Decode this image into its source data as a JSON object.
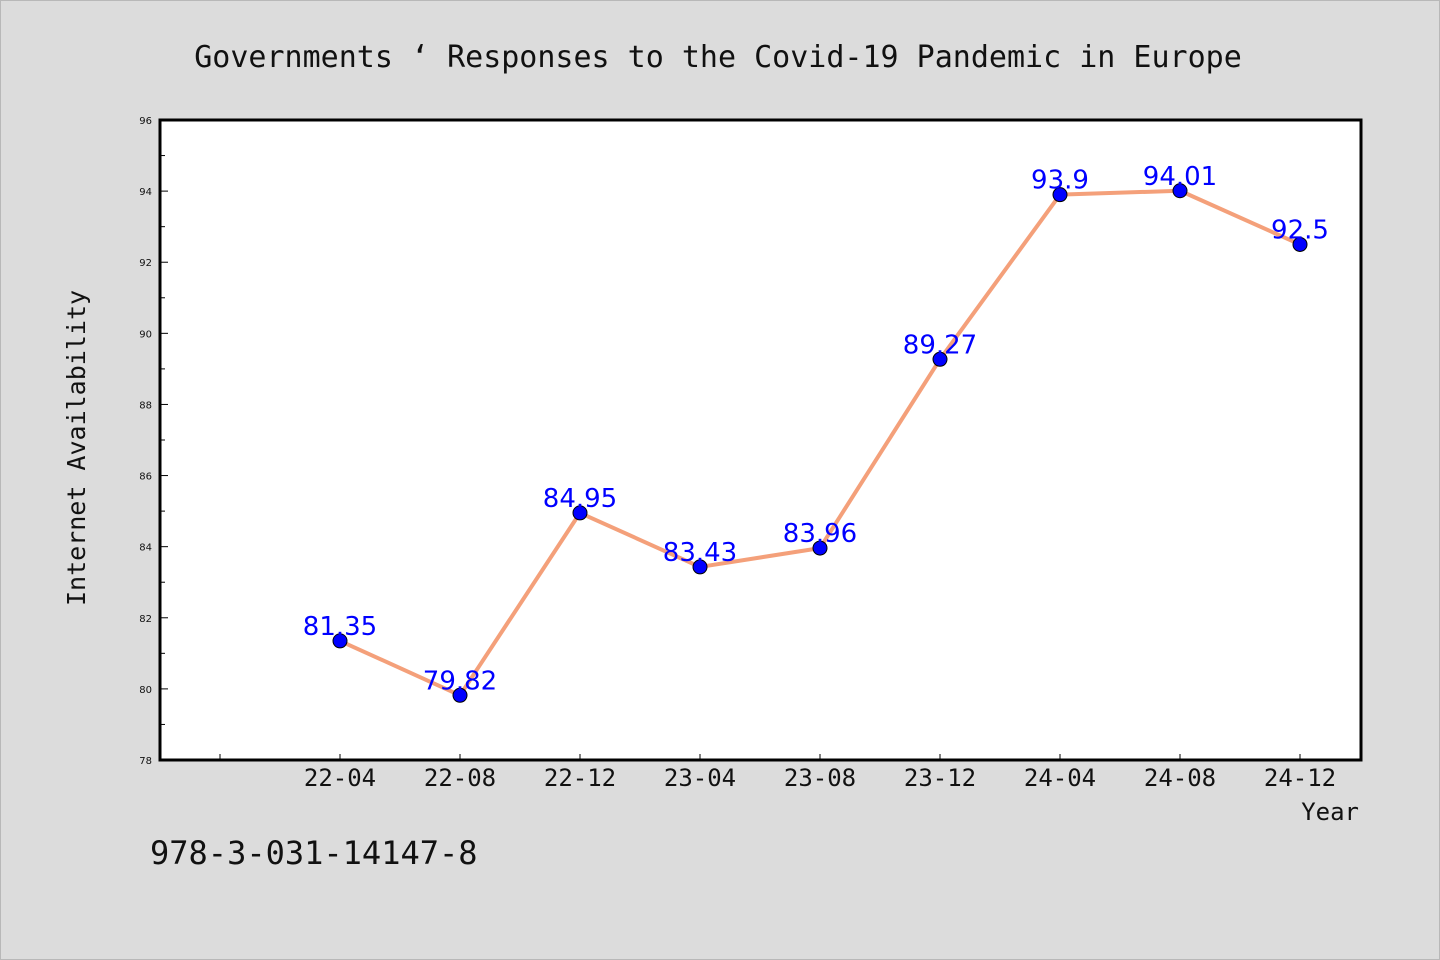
{
  "footer_text": "978-3-031-14147-8",
  "chart_data": {
    "type": "line",
    "title": "Governments ‘ Responses to the Covid-19 Pandemic in Europe",
    "xlabel": "Year",
    "ylabel": "Internet Availability",
    "categories": [
      "22-04",
      "22-08",
      "22-12",
      "23-04",
      "23-08",
      "23-12",
      "24-04",
      "24-08",
      "24-12"
    ],
    "series": [
      {
        "values": [
          81.35,
          79.82,
          84.95,
          83.43,
          83.96,
          89.27,
          93.9,
          94.01,
          92.5
        ]
      }
    ],
    "data_labels": [
      "81.35",
      "79.82",
      "84.95",
      "83.43",
      "83.96",
      "89.27",
      "93.9",
      "94.01",
      "92.5"
    ],
    "ylim": [
      78,
      96
    ],
    "yticks": [
      78,
      80,
      82,
      84,
      86,
      88,
      90,
      92,
      94,
      96
    ],
    "grid": false,
    "legend": "none",
    "colors": {
      "line": "#f4a07a",
      "marker": "#0000ff",
      "marker_edge": "#000000",
      "data_label": "#0000ff",
      "plot_background": "#ffffff",
      "figure_background": "#dcdcdc"
    }
  }
}
